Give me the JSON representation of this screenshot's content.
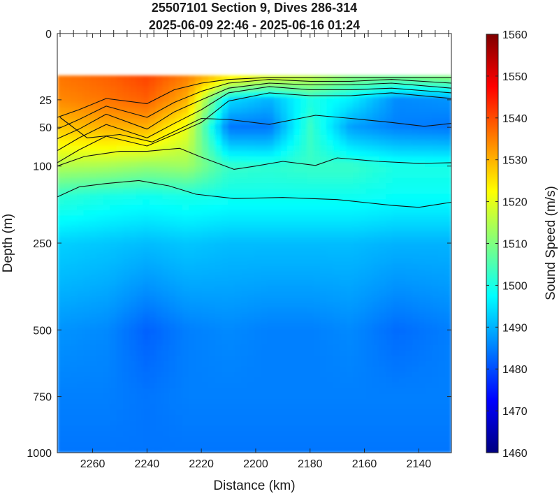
{
  "chart_data": {
    "type": "heatmap",
    "title": "25507101 Section 9, Dives 286-314",
    "subtitle": "2025-06-09 22:46 - 2025-06-16 01:24",
    "xlabel": "Distance (km)",
    "ylabel": "Depth (m)",
    "colorbar_label": "Sound Speed (m/s)",
    "x_reversed": true,
    "xlim": [
      2273,
      2128
    ],
    "x_ticks": [
      2260,
      2240,
      2220,
      2200,
      2180,
      2160,
      2140
    ],
    "y_scale": "sqrt",
    "ylim": [
      0,
      1000
    ],
    "y_ticks": [
      0,
      25,
      50,
      100,
      250,
      500,
      750,
      1000
    ],
    "data_top_depth": 10,
    "clim": [
      1460,
      1560
    ],
    "colorbar_ticks": [
      1460,
      1470,
      1480,
      1490,
      1500,
      1510,
      1520,
      1530,
      1540,
      1550,
      1560
    ],
    "colormap": "jet",
    "grid": false,
    "legend": "colorbar-right",
    "columns": [
      {
        "x": 2273,
        "profile": [
          [
            10,
            1536
          ],
          [
            25,
            1534
          ],
          [
            50,
            1528
          ],
          [
            100,
            1515
          ],
          [
            150,
            1502
          ],
          [
            250,
            1493
          ],
          [
            500,
            1487
          ],
          [
            750,
            1485
          ],
          [
            1000,
            1484
          ]
        ]
      },
      {
        "x": 2255,
        "profile": [
          [
            10,
            1538
          ],
          [
            25,
            1536
          ],
          [
            50,
            1530
          ],
          [
            100,
            1514
          ],
          [
            150,
            1500
          ],
          [
            250,
            1492
          ],
          [
            500,
            1486
          ],
          [
            750,
            1485
          ],
          [
            1000,
            1484
          ]
        ]
      },
      {
        "x": 2240,
        "profile": [
          [
            10,
            1541
          ],
          [
            25,
            1538
          ],
          [
            50,
            1530
          ],
          [
            100,
            1512
          ],
          [
            150,
            1499
          ],
          [
            250,
            1491
          ],
          [
            500,
            1482
          ],
          [
            750,
            1484
          ],
          [
            1000,
            1484
          ]
        ]
      },
      {
        "x": 2225,
        "profile": [
          [
            10,
            1535
          ],
          [
            25,
            1530
          ],
          [
            50,
            1520
          ],
          [
            100,
            1513
          ],
          [
            150,
            1500
          ],
          [
            250,
            1492
          ],
          [
            500,
            1485
          ],
          [
            750,
            1485
          ],
          [
            1000,
            1484
          ]
        ]
      },
      {
        "x": 2210,
        "profile": [
          [
            10,
            1526
          ],
          [
            25,
            1494
          ],
          [
            50,
            1484
          ],
          [
            100,
            1503
          ],
          [
            150,
            1499
          ],
          [
            250,
            1491
          ],
          [
            500,
            1486
          ],
          [
            750,
            1485
          ],
          [
            1000,
            1484
          ]
        ]
      },
      {
        "x": 2195,
        "profile": [
          [
            10,
            1521
          ],
          [
            25,
            1490
          ],
          [
            50,
            1484
          ],
          [
            100,
            1502
          ],
          [
            150,
            1499
          ],
          [
            250,
            1491
          ],
          [
            500,
            1485
          ],
          [
            750,
            1485
          ],
          [
            1000,
            1484
          ]
        ]
      },
      {
        "x": 2180,
        "profile": [
          [
            10,
            1517
          ],
          [
            25,
            1500
          ],
          [
            50,
            1503
          ],
          [
            100,
            1503
          ],
          [
            150,
            1499
          ],
          [
            250,
            1491
          ],
          [
            500,
            1485
          ],
          [
            750,
            1485
          ],
          [
            1000,
            1484
          ]
        ]
      },
      {
        "x": 2165,
        "profile": [
          [
            10,
            1511
          ],
          [
            25,
            1496
          ],
          [
            50,
            1488
          ],
          [
            100,
            1503
          ],
          [
            150,
            1499
          ],
          [
            250,
            1491
          ],
          [
            500,
            1486
          ],
          [
            750,
            1485
          ],
          [
            1000,
            1484
          ]
        ]
      },
      {
        "x": 2148,
        "profile": [
          [
            10,
            1510
          ],
          [
            25,
            1486
          ],
          [
            50,
            1485
          ],
          [
            100,
            1500
          ],
          [
            150,
            1498
          ],
          [
            250,
            1490
          ],
          [
            500,
            1483
          ],
          [
            750,
            1485
          ],
          [
            1000,
            1484
          ]
        ]
      },
      {
        "x": 2128,
        "profile": [
          [
            10,
            1512
          ],
          [
            25,
            1487
          ],
          [
            50,
            1484
          ],
          [
            100,
            1500
          ],
          [
            150,
            1498
          ],
          [
            250,
            1490
          ],
          [
            500,
            1485
          ],
          [
            750,
            1485
          ],
          [
            1000,
            1484
          ]
        ]
      }
    ],
    "isolines": [
      {
        "points": [
          [
            2273,
            40
          ],
          [
            2265,
            33
          ],
          [
            2255,
            24
          ],
          [
            2240,
            28
          ],
          [
            2230,
            18
          ],
          [
            2220,
            14
          ],
          [
            2210,
            12
          ],
          [
            2195,
            11
          ],
          [
            2180,
            11
          ],
          [
            2165,
            11
          ],
          [
            2150,
            11
          ],
          [
            2128,
            11
          ]
        ]
      },
      {
        "points": [
          [
            2273,
            52
          ],
          [
            2265,
            42
          ],
          [
            2255,
            30
          ],
          [
            2240,
            40
          ],
          [
            2230,
            27
          ],
          [
            2220,
            19
          ],
          [
            2210,
            14
          ],
          [
            2195,
            12
          ],
          [
            2180,
            13
          ],
          [
            2165,
            13
          ],
          [
            2150,
            12
          ],
          [
            2128,
            14
          ]
        ]
      },
      {
        "points": [
          [
            2273,
            63
          ],
          [
            2265,
            52
          ],
          [
            2255,
            37
          ],
          [
            2240,
            52
          ],
          [
            2230,
            35
          ],
          [
            2220,
            25
          ],
          [
            2210,
            17
          ],
          [
            2195,
            14
          ],
          [
            2180,
            15
          ],
          [
            2165,
            15
          ],
          [
            2150,
            14
          ],
          [
            2128,
            17
          ]
        ]
      },
      {
        "points": [
          [
            2273,
            78
          ],
          [
            2265,
            62
          ],
          [
            2255,
            47
          ],
          [
            2240,
            62
          ],
          [
            2230,
            46
          ],
          [
            2220,
            33
          ],
          [
            2210,
            20
          ],
          [
            2195,
            16
          ],
          [
            2180,
            18
          ],
          [
            2165,
            18
          ],
          [
            2150,
            17
          ],
          [
            2128,
            20
          ]
        ]
      },
      {
        "points": [
          [
            2273,
            95
          ],
          [
            2265,
            77
          ],
          [
            2255,
            60
          ],
          [
            2240,
            72
          ],
          [
            2230,
            58
          ],
          [
            2220,
            45
          ],
          [
            2210,
            26
          ],
          [
            2195,
            20
          ],
          [
            2180,
            22
          ],
          [
            2165,
            22
          ],
          [
            2150,
            20
          ],
          [
            2128,
            24
          ]
        ]
      },
      {
        "points": [
          [
            2273,
            100
          ],
          [
            2263,
            86
          ],
          [
            2250,
            79
          ],
          [
            2240,
            79
          ],
          [
            2228,
            75
          ],
          [
            2220,
            87
          ],
          [
            2208,
            105
          ],
          [
            2200,
            100
          ],
          [
            2190,
            93
          ],
          [
            2178,
            99
          ],
          [
            2170,
            88
          ],
          [
            2155,
            93
          ],
          [
            2140,
            96
          ],
          [
            2128,
            95
          ]
        ]
      },
      {
        "points": [
          [
            2273,
            152
          ],
          [
            2265,
            134
          ],
          [
            2255,
            128
          ],
          [
            2243,
            123
          ],
          [
            2232,
            132
          ],
          [
            2222,
            147
          ],
          [
            2208,
            155
          ],
          [
            2190,
            153
          ],
          [
            2170,
            157
          ],
          [
            2150,
            168
          ],
          [
            2140,
            172
          ],
          [
            2128,
            162
          ]
        ]
      },
      {
        "points": [
          [
            2272,
            40
          ],
          [
            2262,
            62
          ],
          [
            2250,
            58
          ],
          [
            2238,
            67
          ],
          [
            2220,
            41
          ],
          [
            2210,
            42
          ],
          [
            2195,
            47
          ],
          [
            2178,
            38
          ],
          [
            2165,
            41
          ],
          [
            2150,
            45
          ],
          [
            2138,
            49
          ],
          [
            2128,
            46
          ]
        ]
      }
    ]
  }
}
